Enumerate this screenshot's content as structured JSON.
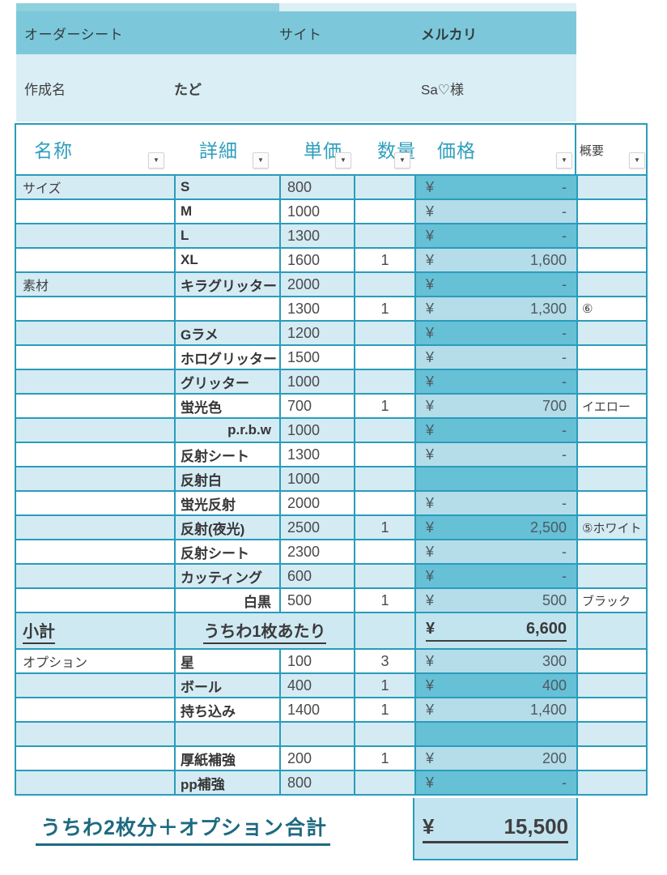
{
  "colors": {
    "header_bar": "#7cc8da",
    "light_section": "#d9eef5",
    "row_light": "#d4ebf4",
    "row_white": "#ffffff",
    "price_cell_dark": "#66c0d6",
    "price_cell_light": "#b4dce9",
    "grid_border": "#2a9cba",
    "header_text_teal": "#2e9fbc",
    "total_text_teal": "#1e6a80",
    "dark_text": "#3f3f3f"
  },
  "top": {
    "header": {
      "title": "オーダーシート",
      "site_label": "サイト",
      "site_value": "メルカリ"
    },
    "creator": {
      "label": "作成名",
      "name": "たど",
      "customer": "Sa♡様"
    }
  },
  "table": {
    "headers": [
      {
        "key": "name",
        "label": "名称",
        "icon": "filter-dropdown-icon"
      },
      {
        "key": "detail",
        "label": "詳細",
        "icon": "filter-dropdown-icon"
      },
      {
        "key": "unit",
        "label": "単価",
        "icon": "filter-dropdown-icon"
      },
      {
        "key": "qty",
        "label": "数量",
        "icon": "filter-dropdown-icon"
      },
      {
        "key": "price",
        "label": "価格",
        "icon": "filter-dropdown-icon"
      },
      {
        "key": "note",
        "label": "概要",
        "icon": "filter-dropdown-icon"
      }
    ],
    "rows": [
      {
        "name": "サイズ",
        "detail": "S",
        "unit": "800",
        "qty": "",
        "yen": "¥",
        "price": "-",
        "note": ""
      },
      {
        "name": "",
        "detail": "M",
        "unit": "1000",
        "qty": "",
        "yen": "¥",
        "price": "-",
        "note": ""
      },
      {
        "name": "",
        "detail": "L",
        "unit": "1300",
        "qty": "",
        "yen": "¥",
        "price": "-",
        "note": ""
      },
      {
        "name": "",
        "detail": "XL",
        "unit": "1600",
        "qty": "1",
        "yen": "¥",
        "price": "1,600",
        "note": ""
      },
      {
        "name": "素材",
        "detail": "キラグリッター",
        "unit": "2000",
        "qty": "",
        "yen": "¥",
        "price": "-",
        "note": ""
      },
      {
        "name": "",
        "detail": "",
        "unit": "1300",
        "qty": "1",
        "yen": "¥",
        "price": "1,300",
        "note": "⑥"
      },
      {
        "name": "",
        "detail": "Gラメ",
        "unit": "1200",
        "qty": "",
        "yen": "¥",
        "price": "-",
        "note": ""
      },
      {
        "name": "",
        "detail": "ホログリッター",
        "unit": "1500",
        "qty": "",
        "yen": "¥",
        "price": "-",
        "note": ""
      },
      {
        "name": "",
        "detail": "グリッター",
        "unit": "1000",
        "qty": "",
        "yen": "¥",
        "price": "-",
        "note": ""
      },
      {
        "name": "",
        "detail": "蛍光色",
        "unit": "700",
        "qty": "1",
        "yen": "¥",
        "price": "700",
        "note": "イエロー"
      },
      {
        "name": "",
        "detail": "p.r.b.w",
        "unit": "1000",
        "qty": "",
        "yen": "¥",
        "price": "-",
        "note": "",
        "detail_right": true
      },
      {
        "name": "",
        "detail": "反射シート",
        "unit": "1300",
        "qty": "",
        "yen": "¥",
        "price": "-",
        "note": ""
      },
      {
        "name": "",
        "detail": "反射白",
        "unit": "1000",
        "qty": "",
        "yen": "",
        "price": "",
        "note": ""
      },
      {
        "name": "",
        "detail": "蛍光反射",
        "unit": "2000",
        "qty": "",
        "yen": "¥",
        "price": "-",
        "note": ""
      },
      {
        "name": "",
        "detail": "反射(夜光)",
        "unit": "2500",
        "qty": "1",
        "yen": "¥",
        "price": "2,500",
        "note": "⑤ホワイト"
      },
      {
        "name": "",
        "detail": "反射シート",
        "unit": "2300",
        "qty": "",
        "yen": "¥",
        "price": "-",
        "note": ""
      },
      {
        "name": "",
        "detail": "カッティング",
        "unit": "600",
        "qty": "",
        "yen": "¥",
        "price": "-",
        "note": ""
      },
      {
        "name": "",
        "detail": "白黒",
        "unit": "500",
        "qty": "1",
        "yen": "¥",
        "price": "500",
        "note": "ブラック",
        "detail_right": true
      }
    ],
    "subtotal": {
      "label": "小計",
      "detail": "うちわ1枚あたり",
      "currency": "¥",
      "amount": "6,600"
    },
    "option_rows": [
      {
        "name": "オプション",
        "detail": "星",
        "unit": "100",
        "qty": "3",
        "yen": "¥",
        "price": "300",
        "note": ""
      },
      {
        "name": "",
        "detail": "ボール",
        "unit": "400",
        "qty": "1",
        "yen": "¥",
        "price": "400",
        "note": ""
      },
      {
        "name": "",
        "detail": "持ち込み",
        "unit": "1400",
        "qty": "1",
        "yen": "¥",
        "price": "1,400",
        "note": ""
      },
      {
        "name": "",
        "detail": "",
        "unit": "",
        "qty": "",
        "yen": "",
        "price": "",
        "note": ""
      },
      {
        "name": "",
        "detail": "厚紙補強",
        "unit": "200",
        "qty": "1",
        "yen": "¥",
        "price": "200",
        "note": ""
      },
      {
        "name": "",
        "detail": "pp補強",
        "unit": "800",
        "qty": "",
        "yen": "¥",
        "price": "-",
        "note": ""
      }
    ]
  },
  "total": {
    "note": "うちわ2枚分＋オプション",
    "label": "合計",
    "currency": "¥",
    "amount": "15,500"
  }
}
